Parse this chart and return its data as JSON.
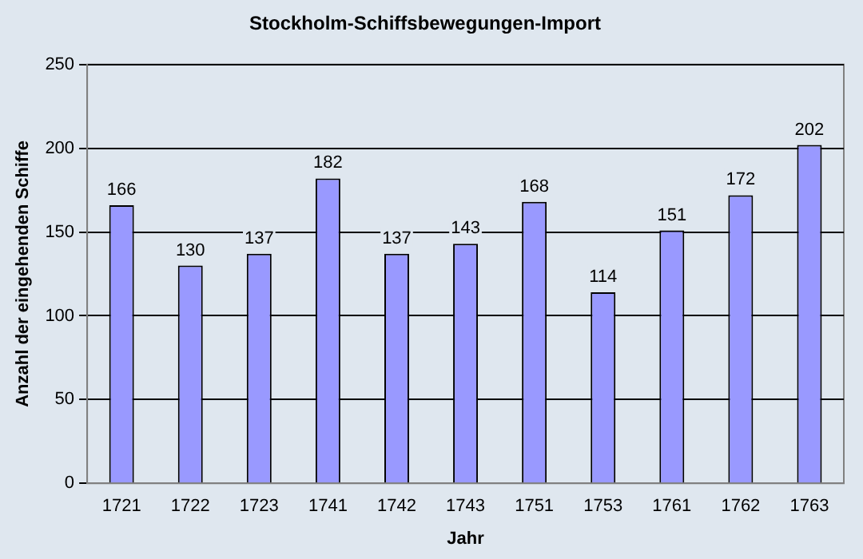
{
  "chart_data": {
    "type": "bar",
    "title": "Stockholm-Schiffsbewegungen-Import",
    "xlabel": "Jahr",
    "ylabel": "Anzahl der eingehenden Schiffe",
    "categories": [
      "1721",
      "1722",
      "1723",
      "1741",
      "1742",
      "1743",
      "1751",
      "1753",
      "1761",
      "1762",
      "1763"
    ],
    "values": [
      166,
      130,
      137,
      182,
      137,
      143,
      168,
      114,
      151,
      172,
      202
    ],
    "color": "#9999ff",
    "ylim": [
      0,
      250
    ],
    "yticks": [
      0,
      50,
      100,
      150,
      200,
      250
    ],
    "grid": "y",
    "data_labels": true,
    "legend": false
  }
}
